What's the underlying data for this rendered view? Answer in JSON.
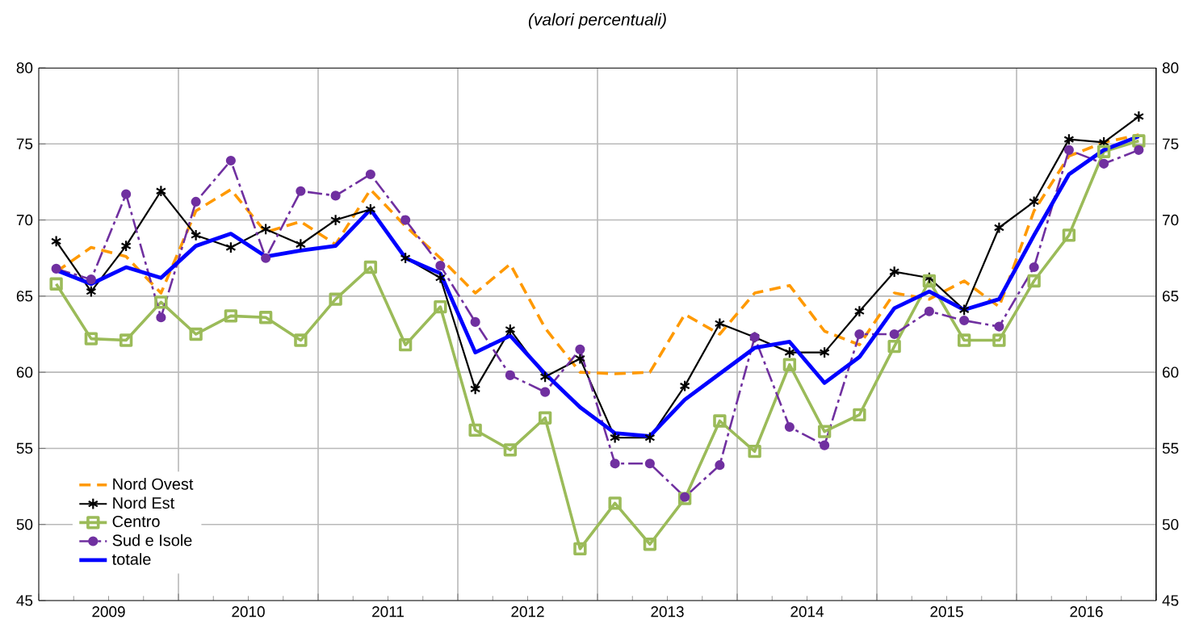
{
  "chart_data": {
    "type": "line",
    "subtitle": "(valori percentuali)",
    "x": [
      2009.125,
      2009.375,
      2009.625,
      2009.875,
      2010.125,
      2010.375,
      2010.625,
      2010.875,
      2011.125,
      2011.375,
      2011.625,
      2011.875,
      2012.125,
      2012.375,
      2012.625,
      2012.875,
      2013.125,
      2013.375,
      2013.625,
      2013.875,
      2014.125,
      2014.375,
      2014.625,
      2014.875,
      2015.125,
      2015.375,
      2015.625,
      2015.875,
      2016.125,
      2016.375,
      2016.625,
      2016.875
    ],
    "series": [
      {
        "name": "Nord Ovest",
        "color": "#ff9900",
        "line_style": "dashed",
        "marker": "none",
        "values": [
          66.6,
          68.2,
          67.6,
          65.2,
          70.6,
          72.0,
          69.2,
          69.9,
          68.4,
          72.0,
          69.6,
          67.5,
          65.2,
          67.1,
          62.9,
          60.0,
          59.9,
          60.0,
          63.8,
          62.5,
          65.2,
          65.7,
          62.7,
          61.8,
          65.2,
          64.8,
          66.0,
          64.3,
          70.6,
          74.2,
          75.1,
          75.6
        ]
      },
      {
        "name": "Nord Est",
        "color": "#000000",
        "line_style": "solid",
        "marker": "cross",
        "values": [
          68.6,
          65.3,
          68.3,
          71.9,
          69.0,
          68.2,
          69.4,
          68.4,
          70.0,
          70.7,
          67.5,
          66.2,
          58.9,
          62.8,
          59.7,
          60.9,
          55.7,
          55.7,
          59.1,
          63.2,
          62.3,
          61.3,
          61.3,
          64.0,
          66.6,
          66.2,
          64.1,
          69.5,
          71.2,
          75.3,
          75.1,
          76.8
        ]
      },
      {
        "name": "Centro",
        "color": "#9bbb59",
        "line_style": "solid",
        "marker": "square",
        "values": [
          65.8,
          62.2,
          62.1,
          64.6,
          62.5,
          63.7,
          63.6,
          62.1,
          64.8,
          66.9,
          61.8,
          64.3,
          56.2,
          54.9,
          57.0,
          48.4,
          51.4,
          48.7,
          51.7,
          56.8,
          54.8,
          60.5,
          56.1,
          57.2,
          61.7,
          66.0,
          62.1,
          62.1,
          66.0,
          69.0,
          74.5,
          75.2
        ]
      },
      {
        "name": "Sud e Isole",
        "color": "#7030a0",
        "line_style": "dashed",
        "marker": "circle",
        "values": [
          66.8,
          66.1,
          71.7,
          63.6,
          71.2,
          73.9,
          67.5,
          71.9,
          71.6,
          73.0,
          70.0,
          67.0,
          63.3,
          59.8,
          58.7,
          61.5,
          54.0,
          54.0,
          51.8,
          53.9,
          62.3,
          56.4,
          55.2,
          62.5,
          62.5,
          64.0,
          63.4,
          63.0,
          66.9,
          74.6,
          73.7,
          74.6
        ]
      },
      {
        "name": "totale",
        "color": "#0000ff",
        "line_style": "solid",
        "marker": "none",
        "values": [
          66.7,
          65.8,
          66.9,
          66.2,
          68.3,
          69.1,
          67.6,
          68.0,
          68.3,
          70.7,
          67.5,
          66.5,
          61.3,
          62.4,
          59.9,
          57.7,
          56.0,
          55.8,
          58.2,
          59.9,
          61.6,
          62.0,
          59.3,
          61.0,
          64.2,
          65.3,
          64.1,
          64.8,
          69.0,
          73.0,
          74.6,
          75.5
        ]
      }
    ],
    "xlim": [
      2009,
      2017
    ],
    "xticks": [
      {
        "value": 2009,
        "label": null
      },
      {
        "value": 2010,
        "label": null
      },
      {
        "value": 2011,
        "label": null
      },
      {
        "value": 2012,
        "label": null
      },
      {
        "value": 2013,
        "label": null
      },
      {
        "value": 2014,
        "label": null
      },
      {
        "value": 2015,
        "label": null
      },
      {
        "value": 2016,
        "label": null
      },
      {
        "value": 2017,
        "label": null
      },
      {
        "value": 2009.5,
        "label": "2009"
      },
      {
        "value": 2010.5,
        "label": "2010"
      },
      {
        "value": 2011.5,
        "label": "2011"
      },
      {
        "value": 2012.5,
        "label": "2012"
      },
      {
        "value": 2013.5,
        "label": "2013"
      },
      {
        "value": 2014.5,
        "label": "2014"
      },
      {
        "value": 2015.5,
        "label": "2015"
      },
      {
        "value": 2016.5,
        "label": "2016"
      }
    ],
    "ylim": [
      45,
      80
    ],
    "yticks": [
      45,
      50,
      55,
      60,
      65,
      70,
      75,
      80
    ],
    "y2lim": [
      45,
      80
    ],
    "y2ticks": [
      45,
      50,
      55,
      60,
      65,
      70,
      75,
      80
    ],
    "grid": true,
    "legend": "bottom left"
  }
}
